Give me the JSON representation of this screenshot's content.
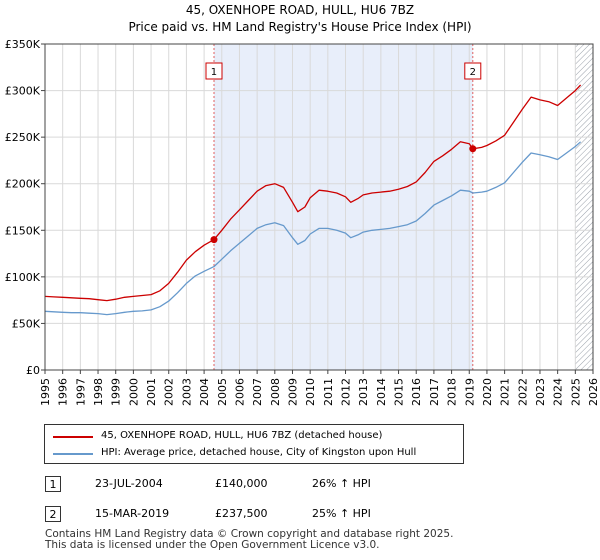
{
  "chart_data": {
    "type": "line",
    "title": "45, OXENHOPE ROAD, HULL, HU6 7BZ",
    "subtitle": "Price paid vs. HM Land Registry's House Price Index (HPI)",
    "xlim": [
      1995,
      2026
    ],
    "ylim": [
      0,
      350000
    ],
    "x_ticks": [
      "1995",
      "1996",
      "1997",
      "1998",
      "1999",
      "2000",
      "2001",
      "2002",
      "2003",
      "2004",
      "2005",
      "2006",
      "2007",
      "2008",
      "2009",
      "2010",
      "2011",
      "2012",
      "2013",
      "2014",
      "2015",
      "2016",
      "2017",
      "2018",
      "2019",
      "2020",
      "2021",
      "2022",
      "2023",
      "2024",
      "2025",
      "2026"
    ],
    "y_ticks": [
      {
        "value": 0,
        "label": "£0"
      },
      {
        "value": 50000,
        "label": "£50K"
      },
      {
        "value": 100000,
        "label": "£100K"
      },
      {
        "value": 150000,
        "label": "£150K"
      },
      {
        "value": 200000,
        "label": "£200K"
      },
      {
        "value": 250000,
        "label": "£250K"
      },
      {
        "value": 300000,
        "label": "£300K"
      },
      {
        "value": 350000,
        "label": "£350K"
      }
    ],
    "grid": true,
    "shaded_period": [
      2004.56,
      2019.2
    ],
    "future_hatch_from": 2025.0,
    "series": [
      {
        "name": "45, OXENHOPE ROAD, HULL, HU6 7BZ (detached house)",
        "color": "#cc0000",
        "points": [
          [
            1995.0,
            79000
          ],
          [
            1995.5,
            78500
          ],
          [
            1996.0,
            78000
          ],
          [
            1996.5,
            77500
          ],
          [
            1997.0,
            77000
          ],
          [
            1997.5,
            76500
          ],
          [
            1998.0,
            75500
          ],
          [
            1998.5,
            74500
          ],
          [
            1999.0,
            76000
          ],
          [
            1999.5,
            78000
          ],
          [
            2000.0,
            79000
          ],
          [
            2000.5,
            80000
          ],
          [
            2001.0,
            81000
          ],
          [
            2001.5,
            85000
          ],
          [
            2002.0,
            93000
          ],
          [
            2002.5,
            105000
          ],
          [
            2003.0,
            118000
          ],
          [
            2003.5,
            127000
          ],
          [
            2004.0,
            134000
          ],
          [
            2004.56,
            140000
          ],
          [
            2005.0,
            150000
          ],
          [
            2005.5,
            162000
          ],
          [
            2006.0,
            172000
          ],
          [
            2006.5,
            182000
          ],
          [
            2007.0,
            192000
          ],
          [
            2007.5,
            198000
          ],
          [
            2008.0,
            200000
          ],
          [
            2008.5,
            196000
          ],
          [
            2009.0,
            180000
          ],
          [
            2009.3,
            170000
          ],
          [
            2009.7,
            175000
          ],
          [
            2010.0,
            185000
          ],
          [
            2010.5,
            193000
          ],
          [
            2011.0,
            192000
          ],
          [
            2011.5,
            190000
          ],
          [
            2012.0,
            186000
          ],
          [
            2012.3,
            180000
          ],
          [
            2012.7,
            184000
          ],
          [
            2013.0,
            188000
          ],
          [
            2013.5,
            190000
          ],
          [
            2014.0,
            191000
          ],
          [
            2014.5,
            192000
          ],
          [
            2015.0,
            194000
          ],
          [
            2015.5,
            197000
          ],
          [
            2016.0,
            202000
          ],
          [
            2016.5,
            212000
          ],
          [
            2017.0,
            224000
          ],
          [
            2017.5,
            230000
          ],
          [
            2018.0,
            237000
          ],
          [
            2018.5,
            245000
          ],
          [
            2019.0,
            243000
          ],
          [
            2019.2,
            237500
          ],
          [
            2019.7,
            239000
          ],
          [
            2020.0,
            241000
          ],
          [
            2020.5,
            246000
          ],
          [
            2021.0,
            252000
          ],
          [
            2021.5,
            266000
          ],
          [
            2022.0,
            280000
          ],
          [
            2022.5,
            293000
          ],
          [
            2023.0,
            290000
          ],
          [
            2023.5,
            288000
          ],
          [
            2024.0,
            284000
          ],
          [
            2024.5,
            292000
          ],
          [
            2025.0,
            300000
          ],
          [
            2025.3,
            306000
          ]
        ]
      },
      {
        "name": "HPI: Average price, detached house, City of Kingston upon Hull",
        "color": "#6699cc",
        "points": [
          [
            1995.0,
            63000
          ],
          [
            1995.5,
            62500
          ],
          [
            1996.0,
            62000
          ],
          [
            1996.5,
            61500
          ],
          [
            1997.0,
            61500
          ],
          [
            1997.5,
            61000
          ],
          [
            1998.0,
            60500
          ],
          [
            1998.5,
            59500
          ],
          [
            1999.0,
            60500
          ],
          [
            1999.5,
            62000
          ],
          [
            2000.0,
            63000
          ],
          [
            2000.5,
            63500
          ],
          [
            2001.0,
            64500
          ],
          [
            2001.5,
            68000
          ],
          [
            2002.0,
            74000
          ],
          [
            2002.5,
            83000
          ],
          [
            2003.0,
            93000
          ],
          [
            2003.5,
            101000
          ],
          [
            2004.0,
            106000
          ],
          [
            2004.56,
            111000
          ],
          [
            2005.0,
            119000
          ],
          [
            2005.5,
            128000
          ],
          [
            2006.0,
            136000
          ],
          [
            2006.5,
            144000
          ],
          [
            2007.0,
            152000
          ],
          [
            2007.5,
            156000
          ],
          [
            2008.0,
            158000
          ],
          [
            2008.5,
            155000
          ],
          [
            2009.0,
            142000
          ],
          [
            2009.3,
            135000
          ],
          [
            2009.7,
            139000
          ],
          [
            2010.0,
            146000
          ],
          [
            2010.5,
            152000
          ],
          [
            2011.0,
            152000
          ],
          [
            2011.5,
            150000
          ],
          [
            2012.0,
            147000
          ],
          [
            2012.3,
            142000
          ],
          [
            2012.7,
            145000
          ],
          [
            2013.0,
            148000
          ],
          [
            2013.5,
            150000
          ],
          [
            2014.0,
            151000
          ],
          [
            2014.5,
            152000
          ],
          [
            2015.0,
            154000
          ],
          [
            2015.5,
            156000
          ],
          [
            2016.0,
            160000
          ],
          [
            2016.5,
            168000
          ],
          [
            2017.0,
            177000
          ],
          [
            2017.5,
            182000
          ],
          [
            2018.0,
            187000
          ],
          [
            2018.5,
            193000
          ],
          [
            2019.0,
            192000
          ],
          [
            2019.2,
            190000
          ],
          [
            2019.7,
            191000
          ],
          [
            2020.0,
            192000
          ],
          [
            2020.5,
            196000
          ],
          [
            2021.0,
            201000
          ],
          [
            2021.5,
            212000
          ],
          [
            2022.0,
            223000
          ],
          [
            2022.5,
            233000
          ],
          [
            2023.0,
            231000
          ],
          [
            2023.5,
            229000
          ],
          [
            2024.0,
            226000
          ],
          [
            2024.5,
            233000
          ],
          [
            2025.0,
            240000
          ],
          [
            2025.3,
            245000
          ]
        ]
      }
    ],
    "sales": [
      {
        "id": "1",
        "x": 2004.56,
        "price": 140000,
        "date": "23-JUL-2004",
        "price_label": "£140,000",
        "hpi_label": "26% ↑ HPI"
      },
      {
        "id": "2",
        "x": 2019.2,
        "price": 237500,
        "date": "15-MAR-2019",
        "price_label": "£237,500",
        "hpi_label": "25% ↑ HPI"
      }
    ],
    "legend": [
      {
        "label": "45, OXENHOPE ROAD, HULL, HU6 7BZ (detached house)",
        "color": "#cc0000"
      },
      {
        "label": "HPI: Average price, detached house, City of Kingston upon Hull",
        "color": "#6699cc"
      }
    ]
  },
  "footer": {
    "line1": "Contains HM Land Registry data © Crown copyright and database right 2025.",
    "line2": "This data is licensed under the Open Government Licence v3.0."
  }
}
